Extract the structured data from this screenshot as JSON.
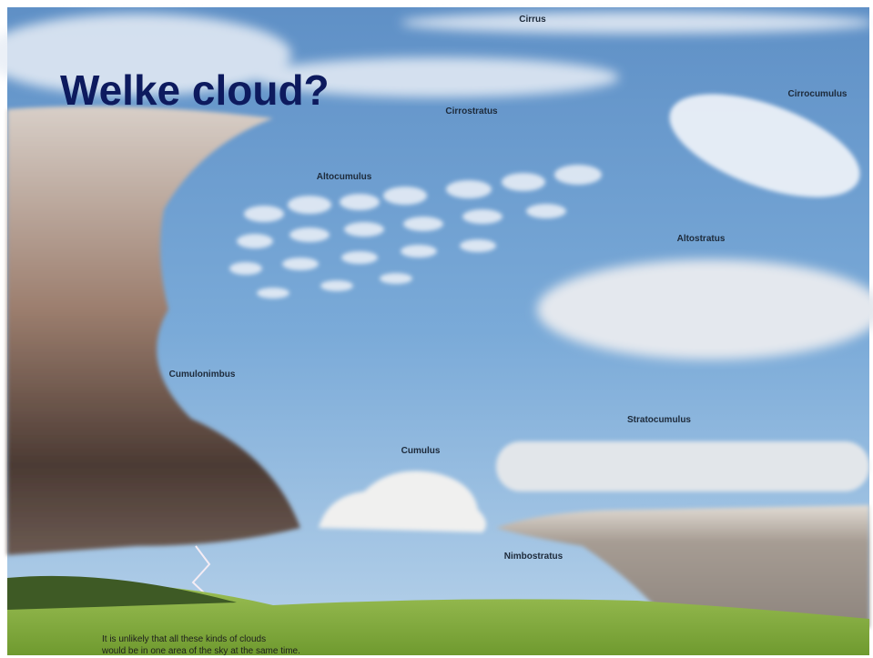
{
  "title": "Welke cloud?",
  "labels": [
    "Cirrus",
    "Cirrostratus",
    "Cirrocumulus",
    "Altocumulus",
    "Altostratus",
    "Cumulonimbus",
    "Stratocumulus",
    "Cumulus",
    "Nimbostratus"
  ],
  "caption": [
    "It is unlikely that all these kinds of clouds",
    "would be in one area of the sky at the same time."
  ]
}
